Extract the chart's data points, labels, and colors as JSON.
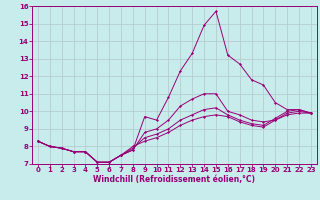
{
  "xlabel": "Windchill (Refroidissement éolien,°C)",
  "xlim_min": -0.5,
  "xlim_max": 23.5,
  "ylim_min": 7,
  "ylim_max": 16,
  "xticks": [
    0,
    1,
    2,
    3,
    4,
    5,
    6,
    7,
    8,
    9,
    10,
    11,
    12,
    13,
    14,
    15,
    16,
    17,
    18,
    19,
    20,
    21,
    22,
    23
  ],
  "yticks": [
    7,
    8,
    9,
    10,
    11,
    12,
    13,
    14,
    15,
    16
  ],
  "bg_color": "#c8ecec",
  "grid_color": "#b0c8c8",
  "line_color": "#990077",
  "series1_y": [
    8.3,
    8.0,
    7.9,
    7.7,
    7.7,
    7.1,
    7.1,
    7.5,
    7.8,
    9.7,
    9.5,
    10.8,
    12.3,
    13.3,
    14.9,
    15.7,
    13.2,
    12.7,
    11.8,
    11.5,
    10.5,
    10.1,
    10.1,
    9.9
  ],
  "series2_y": [
    8.3,
    8.0,
    7.9,
    7.7,
    7.7,
    7.1,
    7.1,
    7.5,
    7.8,
    8.8,
    9.0,
    9.5,
    10.3,
    10.7,
    11.0,
    11.0,
    10.0,
    9.8,
    9.5,
    9.4,
    9.5,
    9.9,
    10.0,
    9.9
  ],
  "series3_y": [
    8.3,
    8.0,
    7.9,
    7.7,
    7.7,
    7.1,
    7.1,
    7.5,
    7.9,
    8.5,
    8.7,
    9.0,
    9.5,
    9.8,
    10.1,
    10.2,
    9.8,
    9.5,
    9.3,
    9.2,
    9.6,
    10.0,
    10.1,
    9.9
  ],
  "series4_y": [
    8.3,
    8.0,
    7.9,
    7.7,
    7.7,
    7.1,
    7.1,
    7.5,
    8.0,
    8.3,
    8.5,
    8.8,
    9.2,
    9.5,
    9.7,
    9.8,
    9.7,
    9.4,
    9.2,
    9.1,
    9.5,
    9.8,
    9.9,
    9.9
  ],
  "tick_fontsize": 5.0,
  "xlabel_fontsize": 5.5,
  "marker_size": 1.5,
  "line_width": 0.7
}
